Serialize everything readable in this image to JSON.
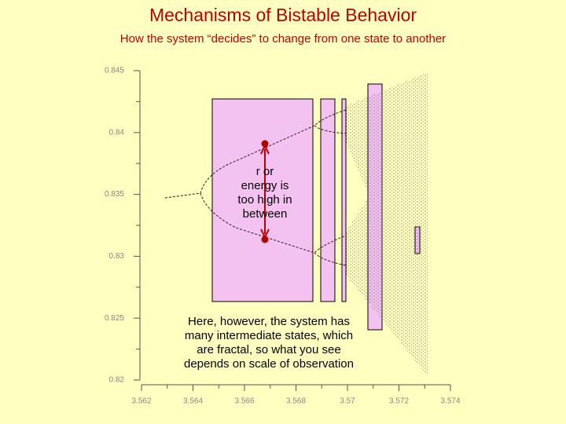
{
  "chart_data": {
    "type": "bifurcation",
    "title": "Mechanisms of Bistable Behavior",
    "subtitle": "How the system “decides” to change from one state to another",
    "xlim": [
      3.562,
      3.574
    ],
    "ylim": [
      0.82,
      0.845
    ],
    "xticks": [
      3.562,
      3.564,
      3.566,
      3.568,
      3.57,
      3.572,
      3.574
    ],
    "yticks": [
      0.82,
      0.825,
      0.83,
      0.835,
      0.84,
      0.845
    ],
    "annotations": [
      [
        "r or",
        "energy is",
        "too high in",
        "between"
      ],
      [
        "Here, however, the system has",
        "many intermediate states, which",
        "are fractal, so what you see",
        "depends on scale of observation"
      ]
    ]
  }
}
